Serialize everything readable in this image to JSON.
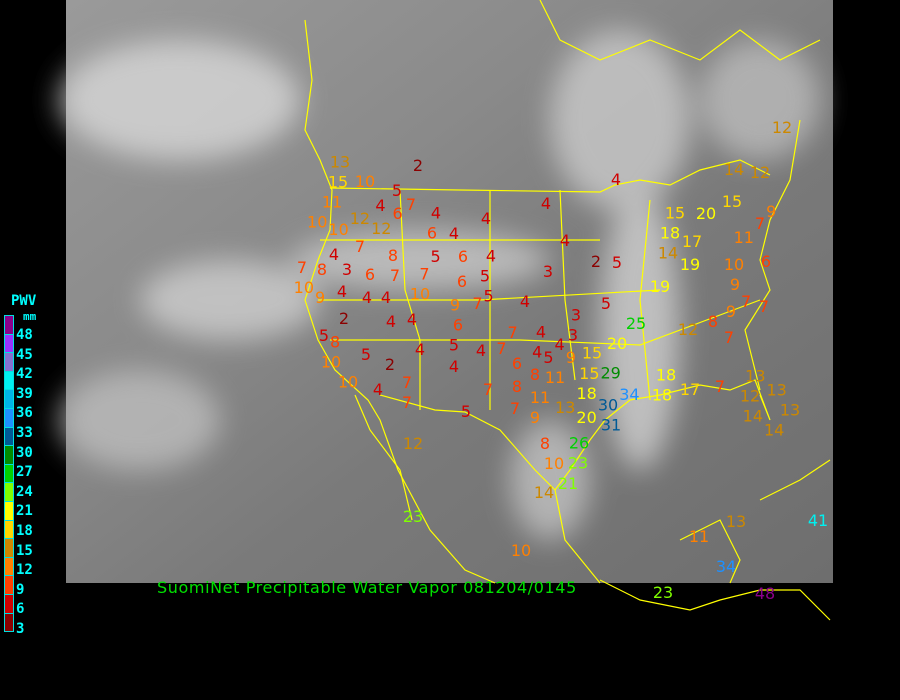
{
  "caption": "SuomiNet Precipitable Water Vapor 081204/0145",
  "legend": {
    "title": "PWV",
    "unit": "mm",
    "labels": [
      "48",
      "45",
      "42",
      "39",
      "36",
      "33",
      "30",
      "27",
      "24",
      "21",
      "18",
      "15",
      "12",
      "9",
      "6",
      "3"
    ],
    "colors": [
      "#8b008b",
      "#9932ff",
      "#8470d0",
      "#00f0f0",
      "#00b4e6",
      "#1e90ff",
      "#005a96",
      "#008c00",
      "#00d000",
      "#80ff00",
      "#ffff00",
      "#ffd700",
      "#cc8800",
      "#ff8000",
      "#ff4000",
      "#d00000",
      "#8b0000"
    ]
  },
  "colors": {
    "boundaries": "#ffff00",
    "caption": "#00e000",
    "background": "#000000"
  },
  "stations": [
    2,
    13,
    15,
    10,
    5,
    11,
    4,
    6,
    7,
    4,
    4,
    4,
    4,
    10,
    12,
    10,
    12,
    6,
    4,
    7,
    8,
    4,
    5,
    6,
    4,
    4,
    3,
    2,
    5,
    7,
    8,
    3,
    6,
    7,
    7,
    6,
    5,
    5,
    10,
    9,
    4,
    4,
    4,
    10,
    9,
    7,
    4,
    5,
    2,
    4,
    4,
    6,
    7,
    3,
    3,
    4,
    5,
    8,
    10,
    5,
    2,
    4,
    5,
    4,
    7,
    4,
    4,
    5,
    9,
    15,
    20,
    25,
    10,
    4,
    7,
    7,
    4,
    6,
    8,
    11,
    15,
    29,
    7,
    8,
    7,
    11,
    9,
    13,
    18,
    30,
    34,
    20,
    31,
    5,
    12,
    8,
    26,
    10,
    23,
    21,
    14,
    23,
    10,
    12,
    14,
    12,
    15,
    20,
    15,
    18,
    17,
    14,
    19,
    11,
    9,
    7,
    6,
    10,
    9,
    19,
    7,
    9,
    7,
    8,
    12,
    7,
    18,
    18,
    17,
    7,
    13,
    12,
    13,
    14,
    13,
    14,
    41,
    13,
    11,
    34,
    48,
    23
  ]
}
